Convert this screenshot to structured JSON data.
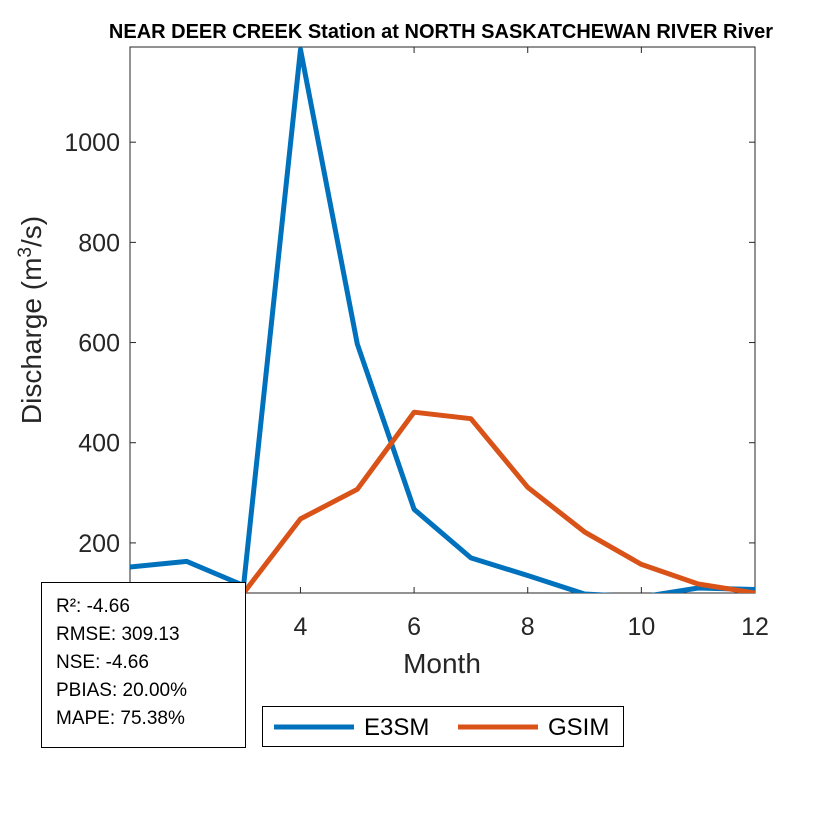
{
  "chart_data": {
    "type": "line",
    "title": "NEAR DEER CREEK  Station at  NORTH SASKATCHEWAN RIVER  River",
    "xlabel": "Month",
    "ylabel": "Discharge (m",
    "ylabel_sup": "3",
    "ylabel_end": "/s)",
    "xlim": [
      1,
      12
    ],
    "ylim": [
      100,
      1190
    ],
    "x_ticks": [
      4,
      6,
      8,
      10,
      12
    ],
    "y_ticks": [
      200,
      400,
      600,
      800,
      1000
    ],
    "grid": false,
    "legend_position": "bottom-outside",
    "x": [
      1,
      2,
      3,
      4,
      5,
      6,
      7,
      8,
      9,
      10,
      11,
      12
    ],
    "series": [
      {
        "name": "E3SM",
        "color": "#0072BD",
        "values": [
          152,
          163,
          115,
          1185,
          597,
          267,
          170,
          135,
          98,
          92,
          110,
          107
        ]
      },
      {
        "name": "GSIM",
        "color": "#D95319",
        "values": [
          null,
          null,
          100,
          248,
          307,
          461,
          448,
          311,
          222,
          157,
          118,
          100
        ]
      }
    ]
  },
  "stats_box": {
    "lines": [
      "R²: -4.66",
      "RMSE: 309.13",
      "NSE: -4.66",
      "PBIAS: 20.00%",
      "MAPE: 75.38%"
    ]
  }
}
